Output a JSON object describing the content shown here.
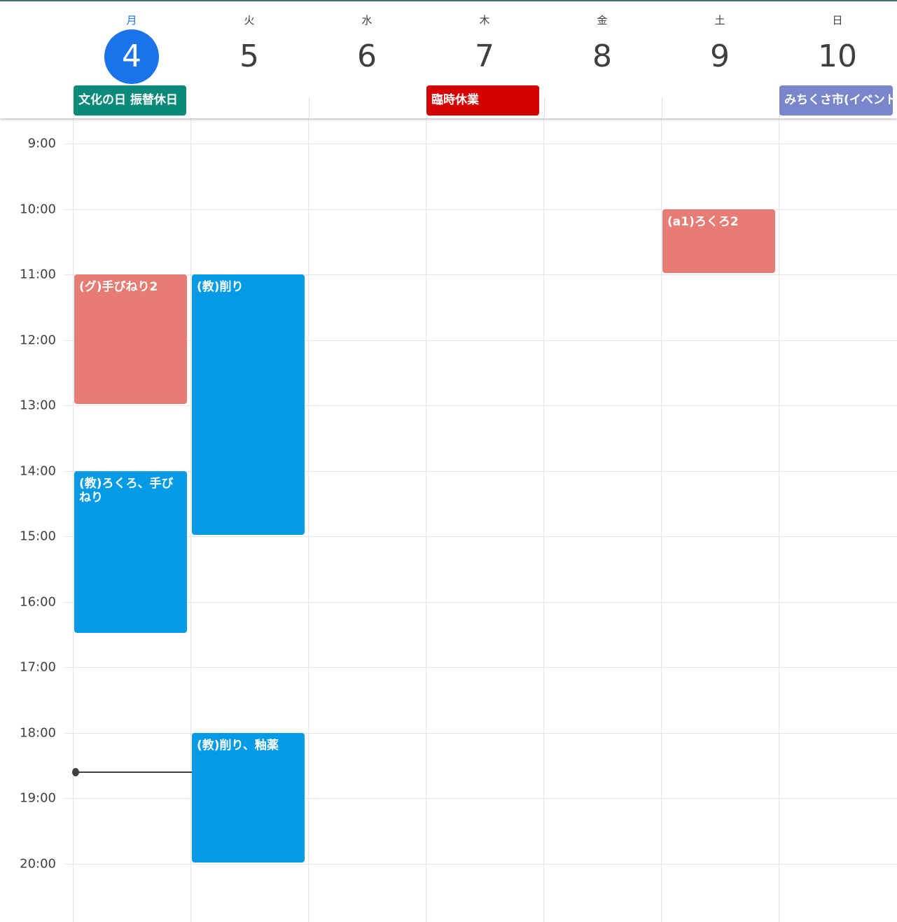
{
  "week": {
    "days": [
      {
        "dow": "月",
        "date": "4",
        "today": true
      },
      {
        "dow": "火",
        "date": "5"
      },
      {
        "dow": "水",
        "date": "6"
      },
      {
        "dow": "木",
        "date": "7"
      },
      {
        "dow": "金",
        "date": "8"
      },
      {
        "dow": "土",
        "date": "9"
      },
      {
        "dow": "日",
        "date": "10"
      }
    ]
  },
  "all_day_events": [
    {
      "title": "文化の日 振替休日",
      "day": 0,
      "color": "#0b8a7a"
    },
    {
      "title": "臨時休業",
      "day": 3,
      "color": "#d50000"
    },
    {
      "title": "みちくさ市(イベント)",
      "day": 6,
      "color": "#7986cb"
    }
  ],
  "time_labels": [
    "9:00",
    "10:00",
    "11:00",
    "12:00",
    "13:00",
    "14:00",
    "15:00",
    "16:00",
    "17:00",
    "18:00",
    "19:00",
    "20:00"
  ],
  "events": [
    {
      "title": "(グ)手びねり2",
      "day": 0,
      "start": 11.0,
      "end": 13.0,
      "color": "#e67c73"
    },
    {
      "title": "(教)ろくろ、手びねり",
      "day": 0,
      "start": 14.0,
      "end": 16.5,
      "color": "#039be5"
    },
    {
      "title": "(教)削り",
      "day": 1,
      "start": 11.0,
      "end": 15.0,
      "color": "#039be5"
    },
    {
      "title": "(教)削り、釉薬",
      "day": 1,
      "start": 18.0,
      "end": 20.0,
      "color": "#039be5"
    },
    {
      "title": "(a1)ろくろ2",
      "day": 5,
      "start": 10.0,
      "end": 11.0,
      "color": "#e67c73"
    }
  ],
  "now_indicator": {
    "time": 18.6
  }
}
